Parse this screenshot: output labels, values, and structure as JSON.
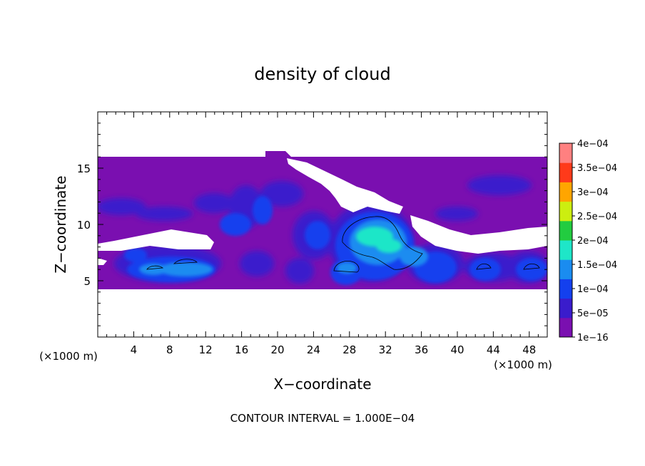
{
  "chart_data": {
    "type": "heatmap",
    "title": "density of cloud",
    "xlabel": "X−coordinate",
    "ylabel": "Z−coordinate",
    "x_unit": "(×1000 m)",
    "x_unit_right": "(×1000 m)",
    "footer": "CONTOUR INTERVAL = 1.000E−04",
    "xlim": [
      0,
      50
    ],
    "ylim": [
      0,
      20
    ],
    "xticks": [
      4,
      8,
      12,
      16,
      20,
      24,
      28,
      32,
      36,
      40,
      44,
      48
    ],
    "yticks": [
      5,
      10,
      15
    ],
    "grid": false,
    "legend": "right",
    "colorbar": {
      "levels": [
        "1e−16",
        "5e−05",
        "1e−04",
        "1.5e−04",
        "2e−04",
        "2.5e−04",
        "3e−04",
        "3.5e−04",
        "4e−04"
      ],
      "colors": [
        "#7a0fb0",
        "#3a1ccc",
        "#1440ee",
        "#1a8cf0",
        "#1ee6c8",
        "#22cc40",
        "#ccee10",
        "#ffa500",
        "#ff3a1a",
        "#ff8080"
      ]
    },
    "cloud_layer": {
      "z_bottom": 4.3,
      "z_top": 16.0
    },
    "clear_gaps": [
      {
        "x": [
          0,
          12
        ],
        "z": [
          8.5,
          9.3
        ]
      },
      {
        "x": [
          26,
          35
        ],
        "z": [
          10.7,
          13.8
        ]
      },
      {
        "x": [
          34,
          50
        ],
        "z": [
          8.5,
          10.3
        ]
      },
      {
        "x": [
          0,
          3
        ],
        "z": [
          7.3,
          8.5
        ]
      }
    ],
    "contour_regions": [
      {
        "x": [
          27,
          37
        ],
        "z": [
          5.5,
          11
        ],
        "peak": 0.00015
      },
      {
        "x": [
          4,
          12
        ],
        "z": [
          4.5,
          8
        ],
        "peak": 0.0001
      },
      {
        "x": [
          26,
          30
        ],
        "z": [
          4.5,
          7
        ],
        "peak": 0.0001
      },
      {
        "x": [
          40,
          45
        ],
        "z": [
          4.5,
          7
        ],
        "peak": 0.0001
      },
      {
        "x": [
          45,
          50
        ],
        "z": [
          4.5,
          7.5
        ],
        "peak": 0.0001
      }
    ]
  }
}
